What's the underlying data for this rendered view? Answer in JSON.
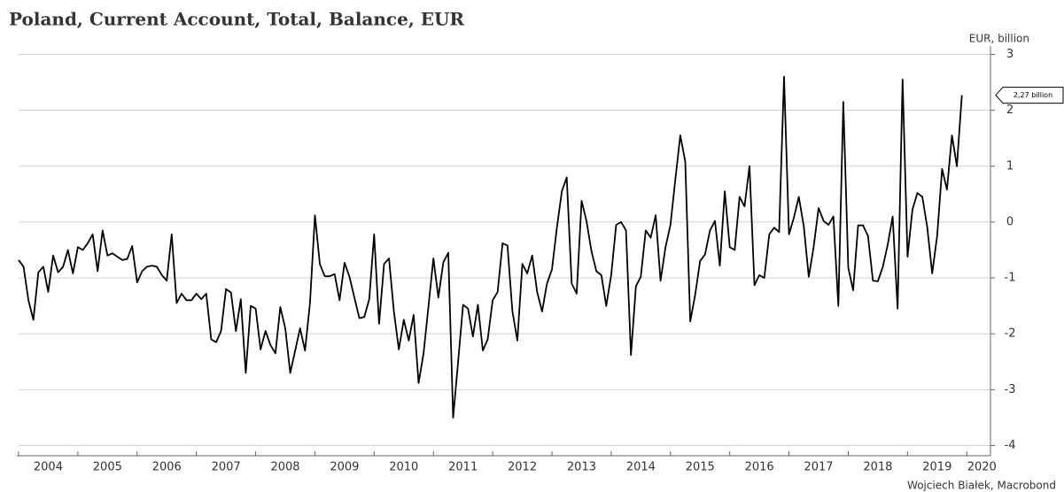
{
  "chart_data": {
    "type": "line",
    "title": "Poland, Current Account, Total, Balance, EUR",
    "y_label": "EUR, billion",
    "source": "Wojciech Białek, Macrobond",
    "x": [
      "2004-01",
      "2004-02",
      "2004-03",
      "2004-04",
      "2004-05",
      "2004-06",
      "2004-07",
      "2004-08",
      "2004-09",
      "2004-10",
      "2004-11",
      "2004-12",
      "2005-01",
      "2005-02",
      "2005-03",
      "2005-04",
      "2005-05",
      "2005-06",
      "2005-07",
      "2005-08",
      "2005-09",
      "2005-10",
      "2005-11",
      "2005-12",
      "2006-01",
      "2006-02",
      "2006-03",
      "2006-04",
      "2006-05",
      "2006-06",
      "2006-07",
      "2006-08",
      "2006-09",
      "2006-10",
      "2006-11",
      "2006-12",
      "2007-01",
      "2007-02",
      "2007-03",
      "2007-04",
      "2007-05",
      "2007-06",
      "2007-07",
      "2007-08",
      "2007-09",
      "2007-10",
      "2007-11",
      "2007-12",
      "2008-01",
      "2008-02",
      "2008-03",
      "2008-04",
      "2008-05",
      "2008-06",
      "2008-07",
      "2008-08",
      "2008-09",
      "2008-10",
      "2008-11",
      "2008-12",
      "2009-01",
      "2009-02",
      "2009-03",
      "2009-04",
      "2009-05",
      "2009-06",
      "2009-07",
      "2009-08",
      "2009-09",
      "2009-10",
      "2009-11",
      "2009-12",
      "2010-01",
      "2010-02",
      "2010-03",
      "2010-04",
      "2010-05",
      "2010-06",
      "2010-07",
      "2010-08",
      "2010-09",
      "2010-10",
      "2010-11",
      "2010-12",
      "2011-01",
      "2011-02",
      "2011-03",
      "2011-04",
      "2011-05",
      "2011-06",
      "2011-07",
      "2011-08",
      "2011-09",
      "2011-10",
      "2011-11",
      "2011-12",
      "2012-01",
      "2012-02",
      "2012-03",
      "2012-04",
      "2012-05",
      "2012-06",
      "2012-07",
      "2012-08",
      "2012-09",
      "2012-10",
      "2012-11",
      "2012-12",
      "2013-01",
      "2013-02",
      "2013-03",
      "2013-04",
      "2013-05",
      "2013-06",
      "2013-07",
      "2013-08",
      "2013-09",
      "2013-10",
      "2013-11",
      "2013-12",
      "2014-01",
      "2014-02",
      "2014-03",
      "2014-04",
      "2014-05",
      "2014-06",
      "2014-07",
      "2014-08",
      "2014-09",
      "2014-10",
      "2014-11",
      "2014-12",
      "2015-01",
      "2015-02",
      "2015-03",
      "2015-04",
      "2015-05",
      "2015-06",
      "2015-07",
      "2015-08",
      "2015-09",
      "2015-10",
      "2015-11",
      "2015-12",
      "2016-01",
      "2016-02",
      "2016-03",
      "2016-04",
      "2016-05",
      "2016-06",
      "2016-07",
      "2016-08",
      "2016-09",
      "2016-10",
      "2016-11",
      "2016-12",
      "2017-01",
      "2017-02",
      "2017-03",
      "2017-04",
      "2017-05",
      "2017-06",
      "2017-07",
      "2017-08",
      "2017-09",
      "2017-10",
      "2017-11",
      "2017-12",
      "2018-01",
      "2018-02",
      "2018-03",
      "2018-04",
      "2018-05",
      "2018-06",
      "2018-07",
      "2018-08",
      "2018-09",
      "2018-10",
      "2018-11",
      "2018-12",
      "2019-01",
      "2019-02",
      "2019-03",
      "2019-04",
      "2019-05",
      "2019-06",
      "2019-07",
      "2019-08",
      "2019-09",
      "2019-10",
      "2019-11",
      "2019-12"
    ],
    "series": [
      {
        "color": "#000000",
        "values": [
          -0.68,
          -0.8,
          -1.4,
          -1.75,
          -0.9,
          -0.8,
          -1.25,
          -0.6,
          -0.9,
          -0.8,
          -0.5,
          -0.92,
          -0.45,
          -0.5,
          -0.38,
          -0.22,
          -0.88,
          -0.15,
          -0.6,
          -0.56,
          -0.62,
          -0.68,
          -0.66,
          -0.43,
          -1.08,
          -0.88,
          -0.8,
          -0.78,
          -0.8,
          -0.95,
          -1.05,
          -0.22,
          -1.45,
          -1.28,
          -1.4,
          -1.4,
          -1.28,
          -1.38,
          -1.28,
          -2.1,
          -2.15,
          -1.95,
          -1.2,
          -1.26,
          -1.95,
          -1.38,
          -2.7,
          -1.5,
          -1.55,
          -2.28,
          -1.95,
          -2.2,
          -2.35,
          -1.52,
          -1.9,
          -2.7,
          -2.3,
          -1.9,
          -2.3,
          -1.45,
          0.12,
          -0.75,
          -0.97,
          -0.97,
          -0.93,
          -1.4,
          -0.73,
          -0.98,
          -1.35,
          -1.72,
          -1.7,
          -1.38,
          -0.22,
          -1.82,
          -0.75,
          -0.65,
          -1.6,
          -2.28,
          -1.75,
          -2.12,
          -1.66,
          -2.88,
          -2.35,
          -1.5,
          -0.65,
          -1.35,
          -0.72,
          -0.55,
          -3.5,
          -2.5,
          -1.48,
          -1.55,
          -2.05,
          -1.48,
          -2.3,
          -2.1,
          -1.4,
          -1.25,
          -0.38,
          -0.42,
          -1.6,
          -2.12,
          -0.75,
          -0.92,
          -0.6,
          -1.25,
          -1.6,
          -1.1,
          -0.85,
          -0.1,
          0.55,
          0.8,
          -1.1,
          -1.28,
          0.38,
          0.02,
          -0.52,
          -0.88,
          -0.95,
          -1.5,
          -0.95,
          -0.05,
          0.0,
          -0.15,
          -2.38,
          -1.15,
          -0.98,
          -0.15,
          -0.28,
          0.12,
          -1.05,
          -0.45,
          -0.05,
          0.78,
          1.55,
          1.08,
          -1.78,
          -1.3,
          -0.7,
          -0.58,
          -0.15,
          0.02,
          -0.78,
          0.55,
          -0.45,
          -0.5,
          0.45,
          0.28,
          1.0,
          -1.13,
          -0.95,
          -1.0,
          -0.22,
          -0.1,
          -0.18,
          2.6,
          -0.22,
          0.08,
          0.45,
          -0.08,
          -0.98,
          -0.45,
          0.25,
          0.02,
          -0.05,
          0.1,
          -1.5,
          2.15,
          -0.82,
          -1.22,
          -0.06,
          -0.06,
          -0.25,
          -1.05,
          -1.06,
          -0.8,
          -0.4,
          0.1,
          -1.55,
          2.55,
          -0.62,
          0.22,
          0.52,
          0.45,
          -0.1,
          -0.92,
          -0.25,
          0.95,
          0.58,
          1.55,
          1.0,
          2.27
        ],
        "value_labels": [
          null,
          null,
          null,
          null,
          null,
          null,
          null,
          null,
          null,
          null,
          null,
          null,
          null,
          null,
          null,
          null,
          null,
          null,
          null,
          null,
          null,
          null,
          null,
          null,
          null,
          null,
          null,
          null,
          null,
          null,
          null,
          null,
          null,
          null,
          null,
          null,
          null,
          null,
          null,
          null,
          null,
          null,
          null,
          null,
          null,
          null,
          null,
          null,
          null,
          null,
          null,
          null,
          null,
          null,
          null,
          null,
          null,
          null,
          null,
          null,
          null,
          null,
          null,
          null,
          null,
          null,
          null,
          null,
          null,
          null,
          null,
          null,
          null,
          null,
          null,
          null,
          null,
          null,
          null,
          null,
          null,
          null,
          null,
          null,
          null,
          null,
          null,
          null,
          null,
          null,
          null,
          null,
          null,
          null,
          null,
          null,
          null,
          null,
          null,
          null,
          null,
          null,
          null,
          null,
          null,
          null,
          null,
          null,
          null,
          null,
          null,
          null,
          null,
          null,
          null,
          null,
          null,
          null,
          null,
          null,
          null,
          null,
          null,
          null,
          null,
          null,
          null,
          null,
          null,
          null,
          null,
          null,
          null,
          null,
          null,
          null,
          null,
          null,
          null,
          null,
          null,
          null,
          null,
          null,
          null,
          null,
          null,
          null,
          null,
          null,
          null,
          null,
          null,
          null,
          null,
          null,
          null,
          null,
          null,
          null,
          null,
          null,
          null,
          null,
          null,
          null,
          null,
          null,
          null,
          null,
          null,
          null,
          null,
          null,
          null,
          null,
          null,
          null,
          null,
          null,
          null,
          null,
          null,
          null,
          null,
          null,
          null,
          null,
          null,
          null,
          null,
          "2,27 billion"
        ]
      }
    ],
    "xlim": [
      2004,
      2020.4
    ],
    "xticks": [
      2004,
      2005,
      2006,
      2007,
      2008,
      2009,
      2010,
      2011,
      2012,
      2013,
      2014,
      2015,
      2016,
      2017,
      2018,
      2019,
      2020
    ],
    "ylim": [
      -4.15,
      3.15
    ],
    "yticks": [
      3,
      2,
      1,
      0,
      -1,
      -2,
      -3,
      -4
    ],
    "grid": true
  }
}
